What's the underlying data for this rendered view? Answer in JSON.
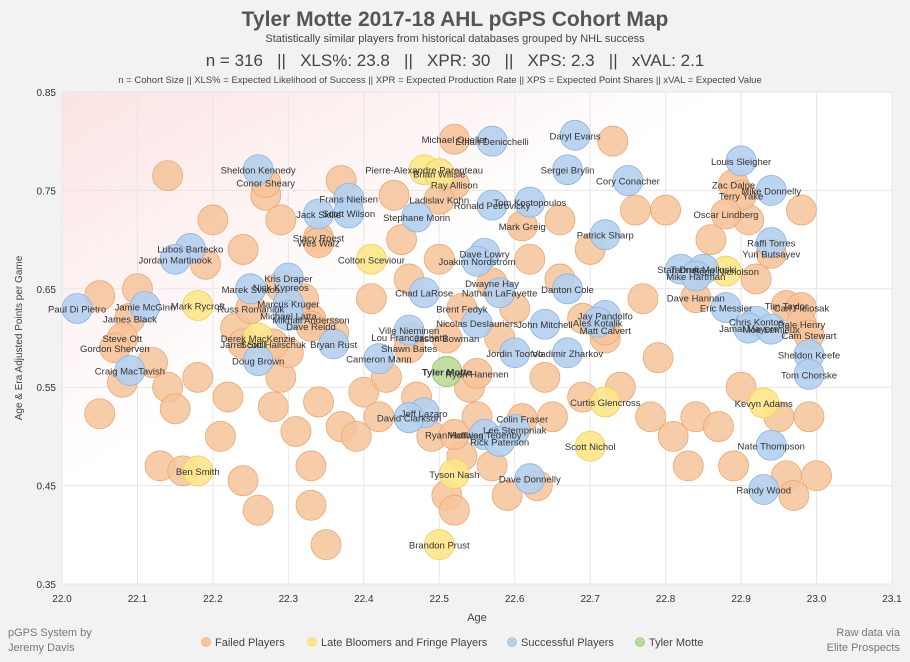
{
  "header": {
    "title": "Tyler Motte 2017-18 AHL pGPS Cohort Map",
    "subtitle": "Statistically similar players from historical databases grouped by NHL success",
    "stats_line": "n = 316   ||   XLS%: 23.8   ||   XPR: 30   ||   XPS: 2.3   ||   xVAL: 2.1",
    "legend_line": "n = Cohort Size || XLS% = Expected Likelihood of Success || XPR = Expected Production Rate || XPS = Expected Point Shares || xVAL = Expected Value"
  },
  "footer": {
    "left_line1": "pGPS System by",
    "left_line2": "Jeremy Davis",
    "right_line1": "Raw data via",
    "right_line2": "Elite Prospects"
  },
  "colors": {
    "failed": "#f6c39a",
    "late": "#fde68a",
    "success": "#b4cfee",
    "focus": "#bcd99a",
    "failed_edge": "#e9a878",
    "late_edge": "#f0cf55",
    "success_edge": "#8fb3de",
    "focus_edge": "#8fbf68"
  },
  "chart_data": {
    "type": "scatter",
    "title": "Tyler Motte 2017-18 AHL pGPS Cohort Map",
    "xlabel": "Age",
    "ylabel": "Age & Era Adjusted Points per Game",
    "xlim": [
      22.0,
      23.1
    ],
    "ylim": [
      0.35,
      0.85
    ],
    "xticks": [
      "22.0",
      "22.1",
      "22.2",
      "22.3",
      "22.4",
      "22.5",
      "22.6",
      "22.7",
      "22.8",
      "22.9",
      "23.0",
      "23.1"
    ],
    "yticks": [
      "0.35",
      "0.45",
      "0.55",
      "0.65",
      "0.75",
      "0.85"
    ],
    "legend": [
      {
        "key": "failed",
        "label": "Failed Players"
      },
      {
        "key": "late",
        "label": "Late Bloomers and Fringe Players"
      },
      {
        "key": "success",
        "label": "Successful Players"
      },
      {
        "key": "focus",
        "label": "Tyler Motte"
      }
    ],
    "labeled_points": [
      {
        "name": "Tyler Motte",
        "x": 22.51,
        "y": 0.566,
        "group": "focus"
      },
      {
        "name": "Michael Ouellet",
        "x": 22.52,
        "y": 0.802,
        "group": "failed"
      },
      {
        "name": "Ethan Denicchelli",
        "x": 22.57,
        "y": 0.8,
        "group": "success"
      },
      {
        "name": "Daryl Evans",
        "x": 22.68,
        "y": 0.806,
        "group": "success"
      },
      {
        "name": "Louis Sleigher",
        "x": 22.9,
        "y": 0.78,
        "group": "success"
      },
      {
        "name": "Sheldon Kennedy",
        "x": 22.26,
        "y": 0.771,
        "group": "success"
      },
      {
        "name": "Conor Sheary",
        "x": 22.27,
        "y": 0.758,
        "group": "failed"
      },
      {
        "name": "Pierre-Alexandre Parenteau",
        "x": 22.48,
        "y": 0.771,
        "group": "late"
      },
      {
        "name": "Brian Willsie",
        "x": 22.5,
        "y": 0.767,
        "group": "late"
      },
      {
        "name": "Sergei Brylin",
        "x": 22.67,
        "y": 0.771,
        "group": "success"
      },
      {
        "name": "Cory Conacher",
        "x": 22.75,
        "y": 0.76,
        "group": "success"
      },
      {
        "name": "Zac Dalpe",
        "x": 22.89,
        "y": 0.756,
        "group": "failed"
      },
      {
        "name": "Terry Yake",
        "x": 22.9,
        "y": 0.745,
        "group": "failed"
      },
      {
        "name": "Mike Donnelly",
        "x": 22.94,
        "y": 0.75,
        "group": "success"
      },
      {
        "name": "Ray Allison",
        "x": 22.52,
        "y": 0.756,
        "group": "failed"
      },
      {
        "name": "Frans Nielsen",
        "x": 22.38,
        "y": 0.742,
        "group": "success"
      },
      {
        "name": "Ladislav Kohn",
        "x": 22.5,
        "y": 0.741,
        "group": "failed"
      },
      {
        "name": "Tom Kostopoulos",
        "x": 22.62,
        "y": 0.738,
        "group": "success"
      },
      {
        "name": "Ronald Petrovicky",
        "x": 22.57,
        "y": 0.735,
        "group": "success"
      },
      {
        "name": "Jack Skille",
        "x": 22.34,
        "y": 0.726,
        "group": "success"
      },
      {
        "name": "Scott Wilson",
        "x": 22.38,
        "y": 0.727,
        "group": "success"
      },
      {
        "name": "Stephane Morin",
        "x": 22.47,
        "y": 0.723,
        "group": "success"
      },
      {
        "name": "Oscar Lindberg",
        "x": 22.88,
        "y": 0.726,
        "group": "failed"
      },
      {
        "name": "Mark Greig",
        "x": 22.61,
        "y": 0.714,
        "group": "failed"
      },
      {
        "name": "Patrick Sharp",
        "x": 22.72,
        "y": 0.705,
        "group": "success"
      },
      {
        "name": "Stacy Roest",
        "x": 22.34,
        "y": 0.702,
        "group": "failed"
      },
      {
        "name": "Wes Walz",
        "x": 22.34,
        "y": 0.697,
        "group": "failed"
      },
      {
        "name": "Raffi Torres",
        "x": 22.94,
        "y": 0.697,
        "group": "success"
      },
      {
        "name": "Lubos Bartecko",
        "x": 22.17,
        "y": 0.691,
        "group": "success"
      },
      {
        "name": "Yuri Butsayev",
        "x": 22.94,
        "y": 0.686,
        "group": "failed"
      },
      {
        "name": "Dave Lowry",
        "x": 22.56,
        "y": 0.686,
        "group": "success"
      },
      {
        "name": "Jordan Martinook",
        "x": 22.15,
        "y": 0.68,
        "group": "success"
      },
      {
        "name": "Colton Sceviour",
        "x": 22.41,
        "y": 0.68,
        "group": "late"
      },
      {
        "name": "Joakim Nordstrom",
        "x": 22.55,
        "y": 0.678,
        "group": "success"
      },
      {
        "name": "Stan Drulia",
        "x": 22.82,
        "y": 0.67,
        "group": "success"
      },
      {
        "name": "Tanner Mollnski",
        "x": 22.85,
        "y": 0.67,
        "group": "success"
      },
      {
        "name": "Scott Nicholson",
        "x": 22.88,
        "y": 0.668,
        "group": "late"
      },
      {
        "name": "Mike Hartman",
        "x": 22.84,
        "y": 0.663,
        "group": "success"
      },
      {
        "name": "Kris Draper",
        "x": 22.3,
        "y": 0.661,
        "group": "success"
      },
      {
        "name": "Dwayne Hay",
        "x": 22.57,
        "y": 0.656,
        "group": "failed"
      },
      {
        "name": "Marek Svatos",
        "x": 22.25,
        "y": 0.65,
        "group": "success"
      },
      {
        "name": "Nick Kypreos",
        "x": 22.29,
        "y": 0.652,
        "group": "failed"
      },
      {
        "name": "Danton Cole",
        "x": 22.67,
        "y": 0.65,
        "group": "success"
      },
      {
        "name": "Chad LaRose",
        "x": 22.48,
        "y": 0.646,
        "group": "success"
      },
      {
        "name": "Nathan LaFayette",
        "x": 22.58,
        "y": 0.646,
        "group": "success"
      },
      {
        "name": "Dave Hannan",
        "x": 22.84,
        "y": 0.641,
        "group": "failed"
      },
      {
        "name": "Paul Di Pietro",
        "x": 22.02,
        "y": 0.63,
        "group": "success"
      },
      {
        "name": "Jamie McGinn",
        "x": 22.11,
        "y": 0.632,
        "group": "success"
      },
      {
        "name": "Mark Rycroft",
        "x": 22.18,
        "y": 0.633,
        "group": "late"
      },
      {
        "name": "Marcus Kruger",
        "x": 22.3,
        "y": 0.635,
        "group": "success"
      },
      {
        "name": "Russ Romaniuk",
        "x": 22.25,
        "y": 0.63,
        "group": "failed"
      },
      {
        "name": "Eric Messier",
        "x": 22.88,
        "y": 0.631,
        "group": "success"
      },
      {
        "name": "Tim Taylor",
        "x": 22.96,
        "y": 0.633,
        "group": "failed"
      },
      {
        "name": "Carl Fleiosak",
        "x": 22.98,
        "y": 0.631,
        "group": "failed"
      },
      {
        "name": "Brent Fedyk",
        "x": 22.53,
        "y": 0.63,
        "group": "failed"
      },
      {
        "name": "James Black",
        "x": 22.09,
        "y": 0.62,
        "group": "failed"
      },
      {
        "name": "Michael Latta",
        "x": 22.3,
        "y": 0.623,
        "group": "success"
      },
      {
        "name": "Jay Pandolfo",
        "x": 22.72,
        "y": 0.623,
        "group": "success"
      },
      {
        "name": "Chris Kontos",
        "x": 22.92,
        "y": 0.617,
        "group": "success"
      },
      {
        "name": "Dale Henry",
        "x": 22.98,
        "y": 0.614,
        "group": "failed"
      },
      {
        "name": "Mikhail Andersson",
        "x": 22.33,
        "y": 0.619,
        "group": "failed"
      },
      {
        "name": "Ales Kotalik",
        "x": 22.71,
        "y": 0.616,
        "group": "success"
      },
      {
        "name": "Nicolas Deslauriers",
        "x": 22.55,
        "y": 0.615,
        "group": "success"
      },
      {
        "name": "John Mitchell",
        "x": 22.64,
        "y": 0.614,
        "group": "success"
      },
      {
        "name": "Dave Reidd",
        "x": 22.33,
        "y": 0.612,
        "group": "failed"
      },
      {
        "name": "Jamal Mayers",
        "x": 22.91,
        "y": 0.61,
        "group": "success"
      },
      {
        "name": "Moe Lemieux",
        "x": 22.94,
        "y": 0.609,
        "group": "success"
      },
      {
        "name": "Matt Calvert",
        "x": 22.72,
        "y": 0.608,
        "group": "failed"
      },
      {
        "name": "Ville Nieminen",
        "x": 22.46,
        "y": 0.608,
        "group": "success"
      },
      {
        "name": "Cam Stewart",
        "x": 22.99,
        "y": 0.603,
        "group": "failed"
      },
      {
        "name": "Lou Franceschetti",
        "x": 22.46,
        "y": 0.601,
        "group": "failed"
      },
      {
        "name": "Jason Bowman",
        "x": 22.51,
        "y": 0.6,
        "group": "failed"
      },
      {
        "name": "Steve Ott",
        "x": 22.08,
        "y": 0.6,
        "group": "failed"
      },
      {
        "name": "Derek MacKenzie",
        "x": 22.26,
        "y": 0.6,
        "group": "late"
      },
      {
        "name": "Jarret Stoll",
        "x": 22.24,
        "y": 0.594,
        "group": "failed"
      },
      {
        "name": "Scott Halischuk",
        "x": 22.28,
        "y": 0.594,
        "group": "failed"
      },
      {
        "name": "Bryan Rust",
        "x": 22.36,
        "y": 0.594,
        "group": "success"
      },
      {
        "name": "Shawn Bates",
        "x": 22.46,
        "y": 0.59,
        "group": "failed"
      },
      {
        "name": "Gordon Sherven",
        "x": 22.07,
        "y": 0.59,
        "group": "failed"
      },
      {
        "name": "Jordin Tootoo",
        "x": 22.6,
        "y": 0.585,
        "group": "success"
      },
      {
        "name": "Vladimir Zharkov",
        "x": 22.67,
        "y": 0.585,
        "group": "success"
      },
      {
        "name": "Sheldon Keefe",
        "x": 22.99,
        "y": 0.583,
        "group": "success"
      },
      {
        "name": "Cameron Mann",
        "x": 22.42,
        "y": 0.579,
        "group": "success"
      },
      {
        "name": "Doug Brown",
        "x": 22.26,
        "y": 0.577,
        "group": "success"
      },
      {
        "name": "Ryan Hanenen",
        "x": 22.55,
        "y": 0.564,
        "group": "failed"
      },
      {
        "name": "Craig MacTavish",
        "x": 22.09,
        "y": 0.567,
        "group": "success"
      },
      {
        "name": "Tom Chorske",
        "x": 22.99,
        "y": 0.563,
        "group": "success"
      },
      {
        "name": "Curtis Glencross",
        "x": 22.72,
        "y": 0.535,
        "group": "late"
      },
      {
        "name": "Kevyn Adams",
        "x": 22.93,
        "y": 0.534,
        "group": "late"
      },
      {
        "name": "Jeff Lazaro",
        "x": 22.48,
        "y": 0.524,
        "group": "success"
      },
      {
        "name": "David Clarkson",
        "x": 22.46,
        "y": 0.519,
        "group": "success"
      },
      {
        "name": "Colin Fraser",
        "x": 22.61,
        "y": 0.518,
        "group": "failed"
      },
      {
        "name": "Lee Stempniak",
        "x": 22.6,
        "y": 0.507,
        "group": "success"
      },
      {
        "name": "Ryan Hollweg",
        "x": 22.52,
        "y": 0.502,
        "group": "failed"
      },
      {
        "name": "Matthias Tedenby",
        "x": 22.56,
        "y": 0.502,
        "group": "success"
      },
      {
        "name": "Rick Paterson",
        "x": 22.58,
        "y": 0.495,
        "group": "success"
      },
      {
        "name": "Scott Nichol",
        "x": 22.7,
        "y": 0.49,
        "group": "late"
      },
      {
        "name": "Nate Thompson",
        "x": 22.94,
        "y": 0.491,
        "group": "success"
      },
      {
        "name": "Ben Smith",
        "x": 22.18,
        "y": 0.465,
        "group": "late"
      },
      {
        "name": "Tyson Nash",
        "x": 22.52,
        "y": 0.462,
        "group": "late"
      },
      {
        "name": "Dave Donnelly",
        "x": 22.62,
        "y": 0.457,
        "group": "success"
      },
      {
        "name": "Randy Wood",
        "x": 22.93,
        "y": 0.446,
        "group": "success"
      },
      {
        "name": "Brandon Prust",
        "x": 22.5,
        "y": 0.39,
        "group": "late"
      }
    ],
    "background_points": [
      {
        "x": 22.05,
        "y": 0.643
      },
      {
        "x": 22.05,
        "y": 0.523
      },
      {
        "x": 22.08,
        "y": 0.555
      },
      {
        "x": 22.1,
        "y": 0.65
      },
      {
        "x": 22.12,
        "y": 0.575
      },
      {
        "x": 22.13,
        "y": 0.47
      },
      {
        "x": 22.14,
        "y": 0.765
      },
      {
        "x": 22.14,
        "y": 0.55
      },
      {
        "x": 22.15,
        "y": 0.528
      },
      {
        "x": 22.16,
        "y": 0.465
      },
      {
        "x": 22.18,
        "y": 0.56
      },
      {
        "x": 22.19,
        "y": 0.675
      },
      {
        "x": 22.2,
        "y": 0.72
      },
      {
        "x": 22.21,
        "y": 0.5
      },
      {
        "x": 22.22,
        "y": 0.54
      },
      {
        "x": 22.23,
        "y": 0.61
      },
      {
        "x": 22.24,
        "y": 0.455
      },
      {
        "x": 22.26,
        "y": 0.425
      },
      {
        "x": 22.27,
        "y": 0.745
      },
      {
        "x": 22.28,
        "y": 0.53
      },
      {
        "x": 22.29,
        "y": 0.56
      },
      {
        "x": 22.3,
        "y": 0.585
      },
      {
        "x": 22.31,
        "y": 0.505
      },
      {
        "x": 22.32,
        "y": 0.64
      },
      {
        "x": 22.33,
        "y": 0.47
      },
      {
        "x": 22.33,
        "y": 0.43
      },
      {
        "x": 22.34,
        "y": 0.535
      },
      {
        "x": 22.35,
        "y": 0.39
      },
      {
        "x": 22.36,
        "y": 0.605
      },
      {
        "x": 22.37,
        "y": 0.51
      },
      {
        "x": 22.37,
        "y": 0.76
      },
      {
        "x": 22.39,
        "y": 0.5
      },
      {
        "x": 22.4,
        "y": 0.545
      },
      {
        "x": 22.41,
        "y": 0.64
      },
      {
        "x": 22.42,
        "y": 0.52
      },
      {
        "x": 22.43,
        "y": 0.56
      },
      {
        "x": 22.44,
        "y": 0.745
      },
      {
        "x": 22.45,
        "y": 0.7
      },
      {
        "x": 22.47,
        "y": 0.54
      },
      {
        "x": 22.49,
        "y": 0.5
      },
      {
        "x": 22.51,
        "y": 0.44
      },
      {
        "x": 22.52,
        "y": 0.425
      },
      {
        "x": 22.53,
        "y": 0.48
      },
      {
        "x": 22.54,
        "y": 0.55
      },
      {
        "x": 22.55,
        "y": 0.52
      },
      {
        "x": 22.57,
        "y": 0.47
      },
      {
        "x": 22.59,
        "y": 0.44
      },
      {
        "x": 22.6,
        "y": 0.63
      },
      {
        "x": 22.62,
        "y": 0.68
      },
      {
        "x": 22.63,
        "y": 0.45
      },
      {
        "x": 22.64,
        "y": 0.56
      },
      {
        "x": 22.65,
        "y": 0.52
      },
      {
        "x": 22.66,
        "y": 0.66
      },
      {
        "x": 22.69,
        "y": 0.54
      },
      {
        "x": 22.7,
        "y": 0.69
      },
      {
        "x": 22.72,
        "y": 0.6
      },
      {
        "x": 22.73,
        "y": 0.8
      },
      {
        "x": 22.74,
        "y": 0.55
      },
      {
        "x": 22.76,
        "y": 0.73
      },
      {
        "x": 22.77,
        "y": 0.64
      },
      {
        "x": 22.78,
        "y": 0.52
      },
      {
        "x": 22.79,
        "y": 0.58
      },
      {
        "x": 22.8,
        "y": 0.73
      },
      {
        "x": 22.81,
        "y": 0.5
      },
      {
        "x": 22.83,
        "y": 0.47
      },
      {
        "x": 22.84,
        "y": 0.52
      },
      {
        "x": 22.86,
        "y": 0.7
      },
      {
        "x": 22.87,
        "y": 0.51
      },
      {
        "x": 22.89,
        "y": 0.47
      },
      {
        "x": 22.9,
        "y": 0.55
      },
      {
        "x": 22.91,
        "y": 0.72
      },
      {
        "x": 22.92,
        "y": 0.66
      },
      {
        "x": 22.95,
        "y": 0.52
      },
      {
        "x": 22.96,
        "y": 0.46
      },
      {
        "x": 22.97,
        "y": 0.44
      },
      {
        "x": 22.98,
        "y": 0.73
      },
      {
        "x": 22.99,
        "y": 0.52
      },
      {
        "x": 23.0,
        "y": 0.46
      },
      {
        "x": 22.66,
        "y": 0.72
      },
      {
        "x": 22.58,
        "y": 0.6
      },
      {
        "x": 22.24,
        "y": 0.69
      },
      {
        "x": 22.29,
        "y": 0.72
      },
      {
        "x": 22.46,
        "y": 0.66
      },
      {
        "x": 22.5,
        "y": 0.68
      },
      {
        "x": 22.69,
        "y": 0.62
      }
    ]
  }
}
